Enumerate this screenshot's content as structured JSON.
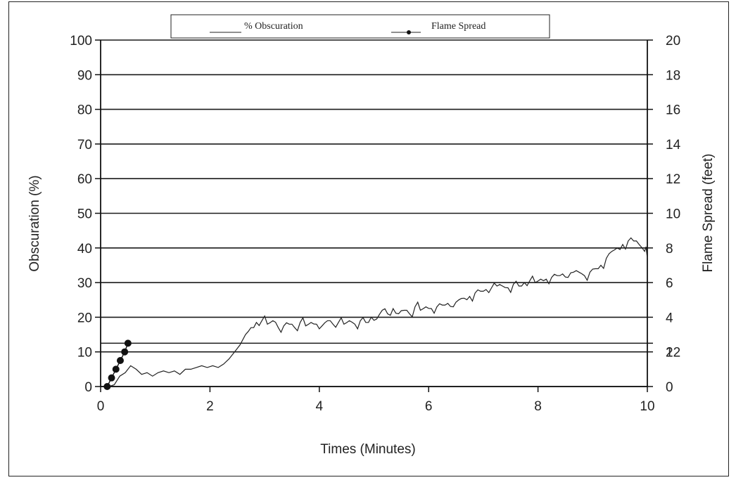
{
  "chart_data": {
    "type": "line",
    "title": "",
    "xlabel": "Times (Minutes)",
    "ylabel_left": "Obscuration (%)",
    "ylabel_right": "Flame Spread (feet)",
    "xlim": [
      0,
      10
    ],
    "ylim_left": [
      0,
      100
    ],
    "ylim_right": [
      0,
      20
    ],
    "x_ticks": [
      0,
      2,
      4,
      6,
      8,
      10
    ],
    "y_ticks_left": [
      0,
      10,
      20,
      30,
      40,
      50,
      60,
      70,
      80,
      90,
      100
    ],
    "y_ticks_right": [
      0,
      2,
      4,
      6,
      8,
      10,
      12,
      14,
      16,
      18,
      20
    ],
    "right_axis_extra_label": "12",
    "grid": "horizontal",
    "legend_position": "top-center",
    "colors": {
      "line": "#222222",
      "grid": "#1a1a1a",
      "marker": "#111111"
    },
    "series": [
      {
        "name": "% Obscuration",
        "axis": "left",
        "style": "line",
        "x": [
          0.15,
          0.25,
          0.35,
          0.45,
          0.55,
          0.65,
          0.75,
          0.85,
          0.95,
          1.05,
          1.15,
          1.25,
          1.35,
          1.45,
          1.55,
          1.65,
          1.75,
          1.85,
          1.95,
          2.05,
          2.15,
          2.25,
          2.35,
          2.45,
          2.55,
          2.65,
          2.75,
          2.85,
          2.95,
          3.05,
          3.15,
          3.25,
          3.35,
          3.45,
          3.55,
          3.65,
          3.75,
          3.85,
          3.95,
          4.05,
          4.15,
          4.25,
          4.35,
          4.45,
          4.55,
          4.65,
          4.75,
          4.85,
          4.95,
          5.05,
          5.15,
          5.25,
          5.35,
          5.45,
          5.55,
          5.65,
          5.75,
          5.85,
          5.95,
          6.05,
          6.15,
          6.25,
          6.35,
          6.45,
          6.55,
          6.65,
          6.75,
          6.85,
          6.95,
          7.05,
          7.15,
          7.25,
          7.35,
          7.45,
          7.55,
          7.65,
          7.75,
          7.85,
          7.95,
          8.05,
          8.15,
          8.25,
          8.35,
          8.45,
          8.55,
          8.65,
          8.75,
          8.85,
          8.95,
          9.05,
          9.15,
          9.25,
          9.35,
          9.45,
          9.55,
          9.65,
          9.75,
          9.85,
          9.95,
          10.0
        ],
        "y": [
          0,
          0.5,
          3,
          4,
          6,
          5,
          3.5,
          4,
          3,
          4,
          4.5,
          4,
          4.5,
          3.5,
          5,
          5,
          5.5,
          6,
          5.5,
          6,
          5.5,
          6.5,
          8,
          10,
          12,
          15,
          17,
          18.5,
          19,
          18,
          19,
          17,
          17.5,
          18,
          17,
          18.5,
          17.5,
          18.5,
          18,
          17.5,
          19,
          18,
          18.5,
          18,
          19,
          18,
          19,
          18.5,
          20,
          19.5,
          22,
          21,
          22.5,
          21,
          22,
          21,
          23,
          22,
          23,
          22.5,
          23,
          23.5,
          24,
          23,
          25,
          25.5,
          26,
          27,
          27.5,
          28,
          28.5,
          29,
          29,
          28.5,
          29.5,
          29,
          30,
          30.5,
          30,
          31,
          31,
          31.5,
          32,
          32.5,
          31.5,
          33,
          33,
          32,
          33,
          34,
          35,
          37,
          39,
          40,
          41,
          42,
          42,
          41,
          39,
          37
        ]
      },
      {
        "name": "Flame Spread",
        "axis": "right",
        "style": "line-markers",
        "x": [
          0.12,
          0.2,
          0.28,
          0.36,
          0.44,
          0.5
        ],
        "y": [
          0,
          0.5,
          1.0,
          1.5,
          2.0,
          2.5
        ]
      }
    ]
  }
}
